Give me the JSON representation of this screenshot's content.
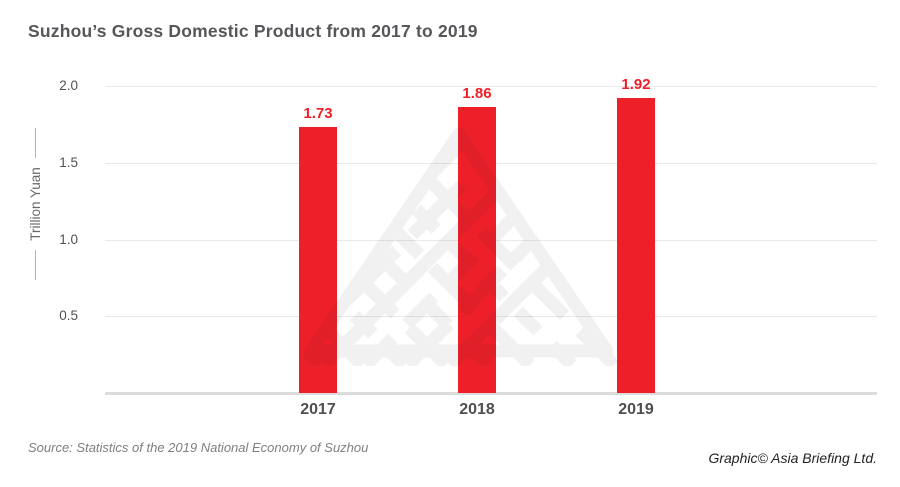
{
  "header": {
    "title": "Suzhou’s Gross Domestic Product from 2017 to 2019"
  },
  "chart_data": {
    "type": "bar",
    "title": "Suzhou’s Gross Domestic Product from 2017 to 2019",
    "categories": [
      "2017",
      "2018",
      "2019"
    ],
    "values": [
      1.73,
      1.86,
      1.92
    ],
    "value_labels": [
      "1.73",
      "1.86",
      "1.92"
    ],
    "xlabel": "",
    "ylabel": "Trillion Yuan",
    "ylim": [
      0,
      2.0
    ],
    "yticks": [
      {
        "label": "2.0",
        "value": 2.0
      },
      {
        "label": "1.5",
        "value": 1.5
      },
      {
        "label": "1.0",
        "value": 1.0
      },
      {
        "label": "0.5",
        "value": 0.5
      }
    ],
    "grid": "horizontal",
    "legend": "none",
    "bar_color": "#ED1F29",
    "value_label_color": "#ED1F29"
  },
  "watermark": {
    "icon": "asia-briefing-triangle-logo"
  },
  "footer": {
    "source": "Source: Statistics of the 2019 National Economy of Suzhou",
    "credit": "Graphic© Asia Briefing Ltd."
  }
}
